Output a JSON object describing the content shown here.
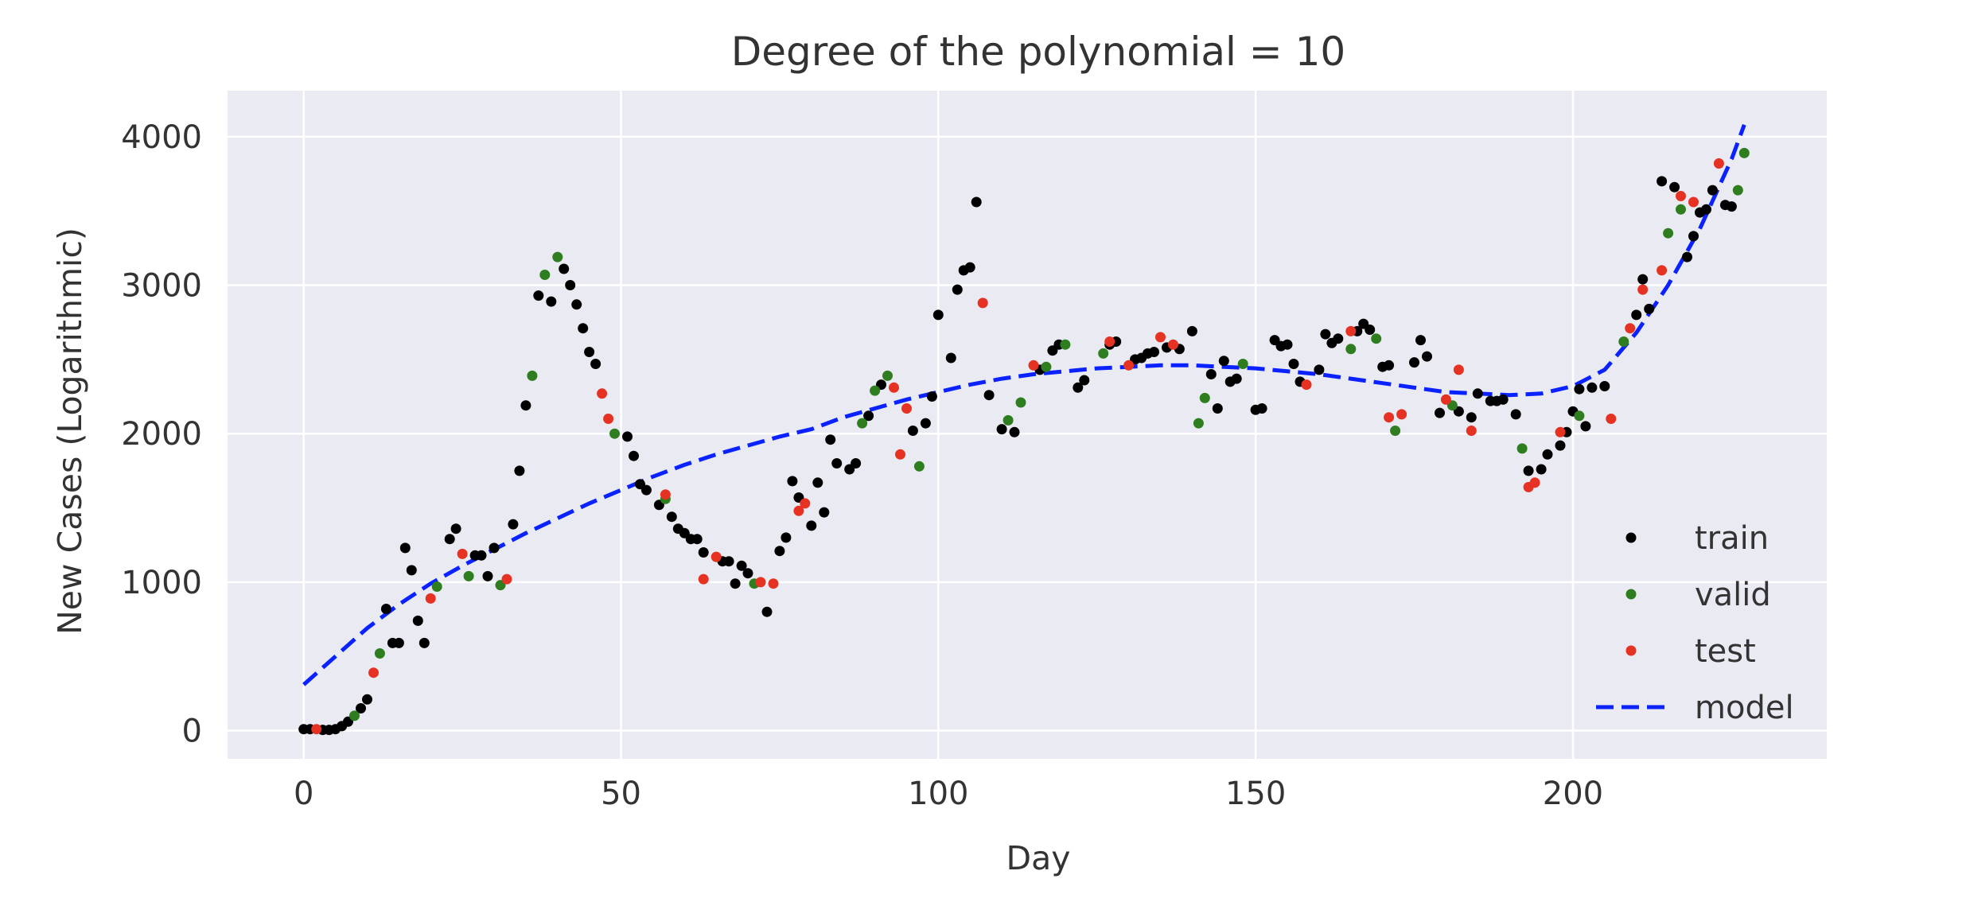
{
  "chart_data": {
    "type": "scatter",
    "title": "Degree of the polynomial = 10",
    "xlabel": "Day",
    "ylabel": "New Cases (Logarithmic)",
    "xlim": [
      -12,
      240
    ],
    "ylim": [
      -190,
      4310
    ],
    "xticks": [
      0,
      50,
      100,
      150,
      200
    ],
    "yticks": [
      0,
      1000,
      2000,
      3000,
      4000
    ],
    "grid": true,
    "legend_position": "lower right",
    "colors": {
      "background": "#eaeaf2",
      "grid": "#ffffff",
      "train": "#000000",
      "valid": "#2e7d1f",
      "test": "#e53222",
      "model": "#0a22ff"
    },
    "series": [
      {
        "name": "train",
        "marker": "dot",
        "points": [
          [
            0,
            10
          ],
          [
            1,
            10
          ],
          [
            3,
            5
          ],
          [
            4,
            5
          ],
          [
            5,
            10
          ],
          [
            6,
            30
          ],
          [
            7,
            60
          ],
          [
            9,
            150
          ],
          [
            10,
            210
          ],
          [
            13,
            820
          ],
          [
            14,
            590
          ],
          [
            15,
            590
          ],
          [
            16,
            1230
          ],
          [
            17,
            1080
          ],
          [
            18,
            740
          ],
          [
            19,
            590
          ],
          [
            23,
            1290
          ],
          [
            24,
            1360
          ],
          [
            27,
            1180
          ],
          [
            28,
            1180
          ],
          [
            29,
            1040
          ],
          [
            30,
            1230
          ],
          [
            33,
            1390
          ],
          [
            34,
            1750
          ],
          [
            35,
            2190
          ],
          [
            37,
            2930
          ],
          [
            39,
            2890
          ],
          [
            41,
            3110
          ],
          [
            42,
            3000
          ],
          [
            43,
            2870
          ],
          [
            44,
            2710
          ],
          [
            45,
            2550
          ],
          [
            46,
            2470
          ],
          [
            51,
            1980
          ],
          [
            52,
            1850
          ],
          [
            53,
            1660
          ],
          [
            54,
            1620
          ],
          [
            56,
            1520
          ],
          [
            58,
            1440
          ],
          [
            59,
            1360
          ],
          [
            60,
            1330
          ],
          [
            61,
            1290
          ],
          [
            62,
            1290
          ],
          [
            63,
            1200
          ],
          [
            66,
            1140
          ],
          [
            67,
            1140
          ],
          [
            68,
            990
          ],
          [
            69,
            1110
          ],
          [
            70,
            1060
          ],
          [
            73,
            800
          ],
          [
            75,
            1210
          ],
          [
            76,
            1300
          ],
          [
            77,
            1680
          ],
          [
            78,
            1570
          ],
          [
            80,
            1380
          ],
          [
            81,
            1670
          ],
          [
            82,
            1470
          ],
          [
            83,
            1960
          ],
          [
            84,
            1800
          ],
          [
            86,
            1760
          ],
          [
            87,
            1800
          ],
          [
            89,
            2120
          ],
          [
            91,
            2330
          ],
          [
            96,
            2020
          ],
          [
            98,
            2070
          ],
          [
            99,
            2250
          ],
          [
            100,
            2800
          ],
          [
            102,
            2510
          ],
          [
            103,
            2970
          ],
          [
            104,
            3100
          ],
          [
            105,
            3120
          ],
          [
            106,
            3560
          ],
          [
            108,
            2260
          ],
          [
            110,
            2030
          ],
          [
            112,
            2010
          ],
          [
            116,
            2430
          ],
          [
            118,
            2560
          ],
          [
            119,
            2600
          ],
          [
            122,
            2310
          ],
          [
            123,
            2360
          ],
          [
            127,
            2600
          ],
          [
            128,
            2620
          ],
          [
            131,
            2500
          ],
          [
            132,
            2510
          ],
          [
            133,
            2540
          ],
          [
            134,
            2550
          ],
          [
            136,
            2580
          ],
          [
            138,
            2570
          ],
          [
            140,
            2690
          ],
          [
            143,
            2400
          ],
          [
            144,
            2170
          ],
          [
            145,
            2490
          ],
          [
            146,
            2350
          ],
          [
            147,
            2370
          ],
          [
            150,
            2160
          ],
          [
            151,
            2170
          ],
          [
            153,
            2630
          ],
          [
            154,
            2590
          ],
          [
            155,
            2600
          ],
          [
            156,
            2470
          ],
          [
            157,
            2350
          ],
          [
            160,
            2430
          ],
          [
            161,
            2670
          ],
          [
            162,
            2610
          ],
          [
            163,
            2640
          ],
          [
            166,
            2690
          ],
          [
            167,
            2740
          ],
          [
            168,
            2700
          ],
          [
            170,
            2450
          ],
          [
            171,
            2460
          ],
          [
            175,
            2480
          ],
          [
            176,
            2630
          ],
          [
            177,
            2520
          ],
          [
            179,
            2140
          ],
          [
            182,
            2150
          ],
          [
            184,
            2110
          ],
          [
            185,
            2270
          ],
          [
            187,
            2220
          ],
          [
            188,
            2220
          ],
          [
            189,
            2230
          ],
          [
            191,
            2130
          ],
          [
            193,
            1750
          ],
          [
            195,
            1760
          ],
          [
            196,
            1860
          ],
          [
            198,
            1920
          ],
          [
            199,
            2010
          ],
          [
            200,
            2150
          ],
          [
            201,
            2300
          ],
          [
            202,
            2050
          ],
          [
            203,
            2310
          ],
          [
            205,
            2320
          ],
          [
            210,
            2800
          ],
          [
            211,
            3040
          ],
          [
            212,
            2840
          ],
          [
            214,
            3700
          ],
          [
            216,
            3660
          ],
          [
            218,
            3190
          ],
          [
            219,
            3330
          ],
          [
            220,
            3490
          ],
          [
            221,
            3510
          ],
          [
            222,
            3640
          ],
          [
            224,
            3540
          ],
          [
            225,
            3530
          ]
        ]
      },
      {
        "name": "valid",
        "marker": "dot",
        "points": [
          [
            8,
            100
          ],
          [
            12,
            520
          ],
          [
            21,
            970
          ],
          [
            26,
            1040
          ],
          [
            31,
            980
          ],
          [
            36,
            2390
          ],
          [
            38,
            3070
          ],
          [
            40,
            3190
          ],
          [
            49,
            2000
          ],
          [
            57,
            1560
          ],
          [
            71,
            990
          ],
          [
            88,
            2070
          ],
          [
            90,
            2290
          ],
          [
            92,
            2390
          ],
          [
            97,
            1780
          ],
          [
            111,
            2090
          ],
          [
            113,
            2210
          ],
          [
            117,
            2450
          ],
          [
            120,
            2600
          ],
          [
            126,
            2540
          ],
          [
            141,
            2070
          ],
          [
            142,
            2240
          ],
          [
            148,
            2470
          ],
          [
            165,
            2570
          ],
          [
            169,
            2640
          ],
          [
            172,
            2020
          ],
          [
            181,
            2190
          ],
          [
            192,
            1900
          ],
          [
            201,
            2120
          ],
          [
            208,
            2620
          ],
          [
            215,
            3350
          ],
          [
            217,
            3510
          ],
          [
            226,
            3640
          ],
          [
            227,
            3890
          ]
        ]
      },
      {
        "name": "test",
        "marker": "dot",
        "points": [
          [
            2,
            10
          ],
          [
            11,
            390
          ],
          [
            20,
            890
          ],
          [
            25,
            1190
          ],
          [
            32,
            1020
          ],
          [
            47,
            2270
          ],
          [
            48,
            2100
          ],
          [
            57,
            1590
          ],
          [
            63,
            1020
          ],
          [
            65,
            1170
          ],
          [
            72,
            1000
          ],
          [
            74,
            990
          ],
          [
            78,
            1480
          ],
          [
            79,
            1530
          ],
          [
            93,
            2310
          ],
          [
            94,
            1860
          ],
          [
            95,
            2170
          ],
          [
            107,
            2880
          ],
          [
            115,
            2460
          ],
          [
            127,
            2620
          ],
          [
            130,
            2460
          ],
          [
            135,
            2650
          ],
          [
            137,
            2600
          ],
          [
            158,
            2330
          ],
          [
            165,
            2690
          ],
          [
            171,
            2110
          ],
          [
            173,
            2130
          ],
          [
            180,
            2230
          ],
          [
            182,
            2430
          ],
          [
            184,
            2020
          ],
          [
            193,
            1640
          ],
          [
            194,
            1670
          ],
          [
            198,
            2010
          ],
          [
            206,
            2100
          ],
          [
            209,
            2710
          ],
          [
            211,
            2970
          ],
          [
            214,
            3100
          ],
          [
            217,
            3600
          ],
          [
            219,
            3560
          ],
          [
            223,
            3820
          ]
        ]
      },
      {
        "name": "model",
        "style": "dashed",
        "points": [
          [
            0,
            310
          ],
          [
            5,
            500
          ],
          [
            10,
            690
          ],
          [
            15,
            850
          ],
          [
            20,
            990
          ],
          [
            25,
            1110
          ],
          [
            30,
            1220
          ],
          [
            35,
            1330
          ],
          [
            40,
            1430
          ],
          [
            45,
            1530
          ],
          [
            50,
            1620
          ],
          [
            55,
            1710
          ],
          [
            60,
            1790
          ],
          [
            65,
            1860
          ],
          [
            70,
            1920
          ],
          [
            75,
            1980
          ],
          [
            80,
            2030
          ],
          [
            85,
            2110
          ],
          [
            90,
            2170
          ],
          [
            95,
            2230
          ],
          [
            100,
            2280
          ],
          [
            105,
            2330
          ],
          [
            110,
            2370
          ],
          [
            115,
            2400
          ],
          [
            120,
            2420
          ],
          [
            125,
            2440
          ],
          [
            130,
            2450
          ],
          [
            135,
            2460
          ],
          [
            140,
            2460
          ],
          [
            145,
            2450
          ],
          [
            150,
            2440
          ],
          [
            155,
            2420
          ],
          [
            160,
            2400
          ],
          [
            165,
            2370
          ],
          [
            170,
            2340
          ],
          [
            175,
            2310
          ],
          [
            180,
            2280
          ],
          [
            185,
            2270
          ],
          [
            190,
            2260
          ],
          [
            195,
            2270
          ],
          [
            200,
            2320
          ],
          [
            205,
            2430
          ],
          [
            210,
            2680
          ],
          [
            215,
            3000
          ],
          [
            220,
            3380
          ],
          [
            225,
            3850
          ],
          [
            227,
            4080
          ]
        ]
      }
    ]
  }
}
